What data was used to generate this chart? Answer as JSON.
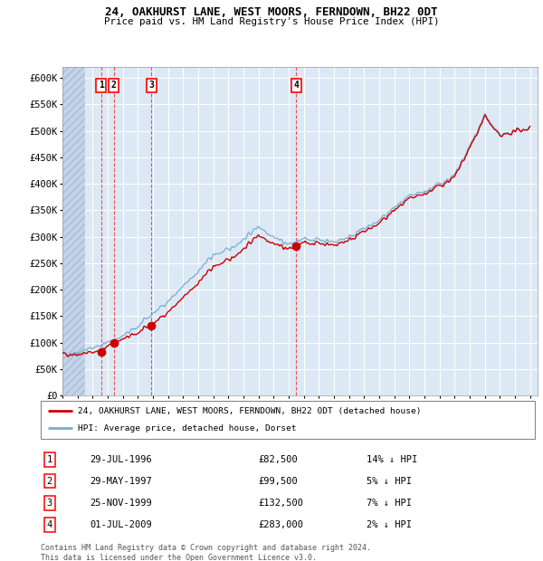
{
  "title1": "24, OAKHURST LANE, WEST MOORS, FERNDOWN, BH22 0DT",
  "title2": "Price paid vs. HM Land Registry's House Price Index (HPI)",
  "ytick_values": [
    0,
    50000,
    100000,
    150000,
    200000,
    250000,
    300000,
    350000,
    400000,
    450000,
    500000,
    550000,
    600000
  ],
  "xlim_start": 1994.0,
  "xlim_end": 2025.5,
  "ylim_min": 0,
  "ylim_max": 620000,
  "sales": [
    {
      "num": 1,
      "year": 1996.57,
      "price": 82500,
      "date": "29-JUL-1996",
      "pct": "14%"
    },
    {
      "num": 2,
      "year": 1997.41,
      "price": 99500,
      "date": "29-MAY-1997",
      "pct": "5%"
    },
    {
      "num": 3,
      "year": 1999.9,
      "price": 132500,
      "date": "25-NOV-1999",
      "pct": "7%"
    },
    {
      "num": 4,
      "year": 2009.5,
      "price": 283000,
      "date": "01-JUL-2009",
      "pct": "2%"
    }
  ],
  "legend_label_red": "24, OAKHURST LANE, WEST MOORS, FERNDOWN, BH22 0DT (detached house)",
  "legend_label_blue": "HPI: Average price, detached house, Dorset",
  "footer": "Contains HM Land Registry data © Crown copyright and database right 2024.\nThis data is licensed under the Open Government Licence v3.0.",
  "bg_color": "#dce9f5",
  "red_color": "#cc0000",
  "blue_color": "#7aaad0",
  "hpi_control_years": [
    1994.0,
    1995.0,
    1996.0,
    1997.0,
    1998.0,
    1999.0,
    2000.0,
    2001.0,
    2002.0,
    2003.0,
    2004.0,
    2005.0,
    2006.0,
    2007.0,
    2008.0,
    2009.0,
    2010.0,
    2011.0,
    2012.0,
    2013.0,
    2014.0,
    2015.0,
    2016.0,
    2017.0,
    2018.0,
    2019.0,
    2020.0,
    2021.0,
    2022.0,
    2023.0,
    2024.0,
    2025.0
  ],
  "hpi_control_vals": [
    78000,
    82000,
    90000,
    100000,
    112000,
    130000,
    155000,
    178000,
    205000,
    235000,
    265000,
    275000,
    295000,
    320000,
    300000,
    285000,
    295000,
    295000,
    290000,
    300000,
    315000,
    330000,
    355000,
    375000,
    385000,
    400000,
    415000,
    470000,
    530000,
    490000,
    500000,
    505000
  ]
}
